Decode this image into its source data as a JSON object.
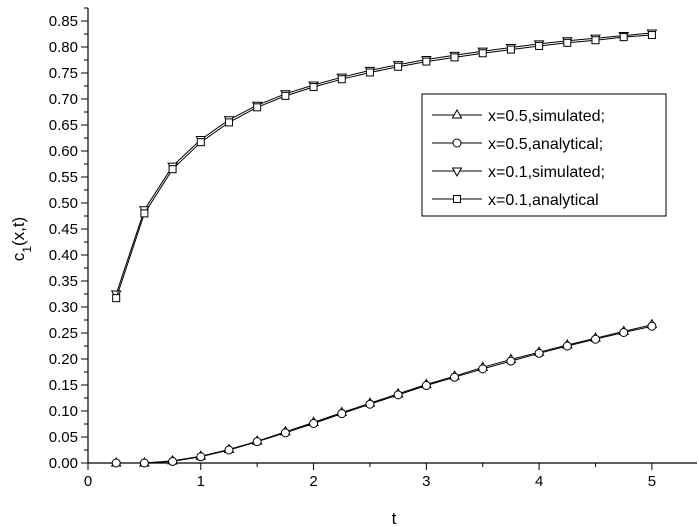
{
  "chart_data": {
    "type": "line",
    "xlabel": "t",
    "ylabel": "c",
    "ylabel_sub": "1",
    "ylabel_suffix": "(x,t)",
    "xlim": [
      0,
      5.4
    ],
    "ylim": [
      0,
      0.875
    ],
    "x_ticks": [
      0,
      1,
      2,
      3,
      4,
      5
    ],
    "y_ticks": [
      0.0,
      0.05,
      0.1,
      0.15,
      0.2,
      0.25,
      0.3,
      0.35,
      0.4,
      0.45,
      0.5,
      0.55,
      0.6,
      0.65,
      0.7,
      0.75,
      0.8,
      0.85
    ],
    "grid": false,
    "legend_position": "upper-right",
    "x": [
      0.25,
      0.5,
      0.75,
      1.0,
      1.25,
      1.5,
      1.75,
      2.0,
      2.25,
      2.5,
      2.75,
      3.0,
      3.25,
      3.5,
      3.75,
      4.0,
      4.25,
      4.5,
      4.75,
      5.0
    ],
    "series": [
      {
        "name": "x=0.5,simulated;",
        "marker": "triangle-up",
        "values": [
          0.0,
          0.0,
          0.004,
          0.013,
          0.026,
          0.042,
          0.06,
          0.078,
          0.097,
          0.115,
          0.133,
          0.151,
          0.167,
          0.184,
          0.199,
          0.213,
          0.227,
          0.24,
          0.253,
          0.266
        ]
      },
      {
        "name": "x=0.5,analytical;",
        "marker": "circle",
        "values": [
          0.0,
          0.0,
          0.003,
          0.012,
          0.025,
          0.041,
          0.058,
          0.076,
          0.095,
          0.113,
          0.131,
          0.149,
          0.165,
          0.181,
          0.196,
          0.211,
          0.225,
          0.238,
          0.251,
          0.263
        ]
      },
      {
        "name": "x=0.1,simulated;",
        "marker": "triangle-down",
        "values": [
          0.325,
          0.487,
          0.571,
          0.622,
          0.66,
          0.688,
          0.71,
          0.727,
          0.742,
          0.755,
          0.766,
          0.776,
          0.784,
          0.792,
          0.799,
          0.806,
          0.812,
          0.817,
          0.822,
          0.827
        ]
      },
      {
        "name": "x=0.1,analytical",
        "marker": "square",
        "values": [
          0.317,
          0.48,
          0.565,
          0.617,
          0.655,
          0.684,
          0.706,
          0.723,
          0.738,
          0.751,
          0.762,
          0.772,
          0.78,
          0.788,
          0.795,
          0.802,
          0.808,
          0.813,
          0.819,
          0.823
        ]
      }
    ]
  }
}
